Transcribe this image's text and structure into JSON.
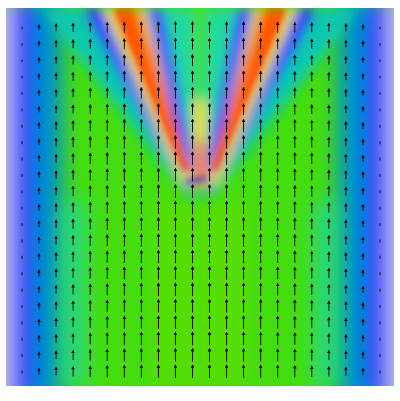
{
  "chart_data": {
    "type": "heatmap",
    "title": "",
    "xlabel": "",
    "ylabel": "",
    "colormap": [
      "#ffffff",
      "#3030ff",
      "#00c8c8",
      "#40e000",
      "#f8f000",
      "#ff2000"
    ],
    "background": "#ffffff",
    "grid": false,
    "legend": "none",
    "overlay": {
      "type": "quiver",
      "direction": "up",
      "columns": 22,
      "rows": 22,
      "arrow_color": "#000000"
    }
  }
}
